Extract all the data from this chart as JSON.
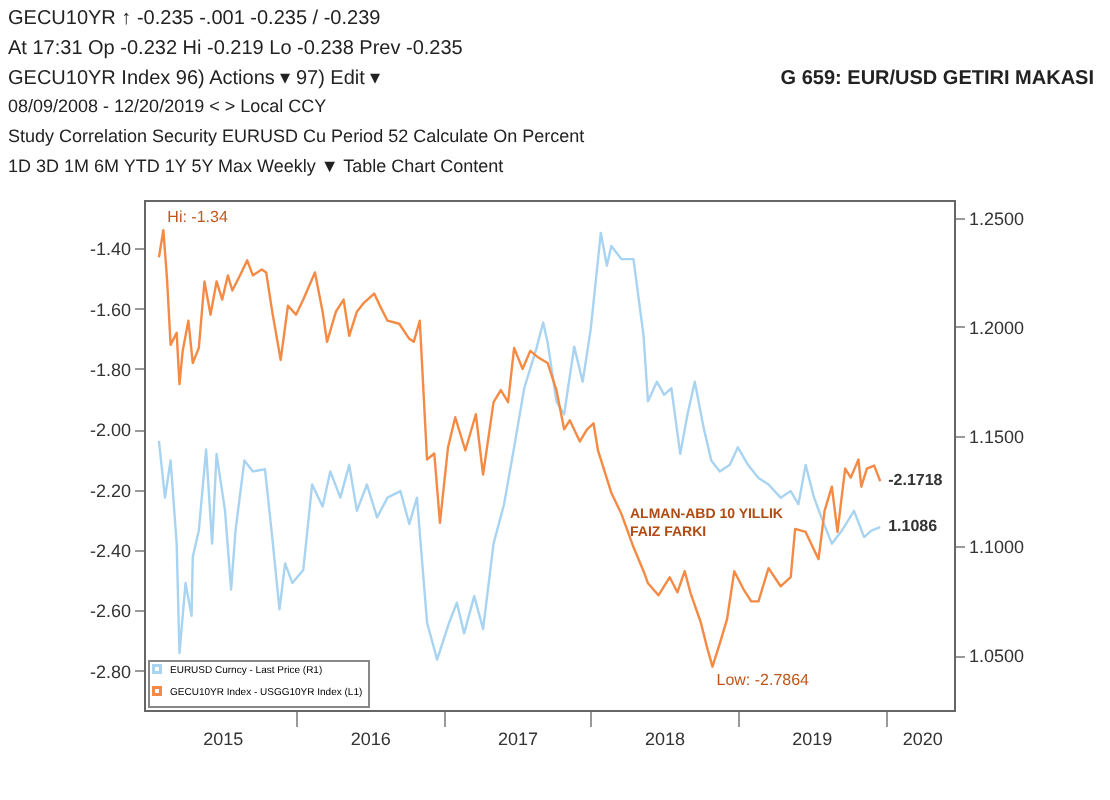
{
  "chart_data": {
    "type": "line",
    "title": "G 659: EUR/USD GETIRI MAKASI",
    "annotations": [
      "GECU10YR   ↑ -0.235     -.001     -0.235 / -0.239",
      "At 17:31   Op -0.232   Hi -0.219   Lo -0.238   Prev -0.235",
      "GECU10YR Index     96) Actions ▾     97) Edit ▾",
      "08/09/2008 - 12/20/2019   < >   Local CCY",
      "Study  Correlation   Security  EURUSD Cu   Period  52   Calculate On  Percent",
      "1D  3D  1M  6M  YTD  1Y  5Y  Max  Weekly ▼   Table   Chart Content",
      {
        "text": "Hi: -1.34",
        "x": "2015-02-06",
        "y": -1.34
      },
      {
        "text": "Low: -2.7864",
        "x": "2018-10-30",
        "y": -2.7864
      },
      "ALMAN-ABD 10 YILLIK FAIZ FARKI"
    ],
    "xlim": [
      "2014-12-20",
      "2020-06-20"
    ],
    "xticks": [
      {
        "value": "2015-07-02",
        "label": "2015"
      },
      {
        "value": "2016-01-01",
        "label": null
      },
      {
        "value": "2016-07-02",
        "label": "2016"
      },
      {
        "value": "2017-01-01",
        "label": null
      },
      {
        "value": "2017-07-02",
        "label": "2017"
      },
      {
        "value": "2018-01-01",
        "label": null
      },
      {
        "value": "2018-07-02",
        "label": "2018"
      },
      {
        "value": "2019-01-01",
        "label": null
      },
      {
        "value": "2019-07-02",
        "label": "2019"
      },
      {
        "value": "2020-01-01",
        "label": null
      },
      {
        "value": "2020-04-01",
        "label": "2020"
      }
    ],
    "ylim": [
      -2.93,
      -1.24
    ],
    "yticks": [
      {
        "value": -1.4,
        "label": "-1.40"
      },
      {
        "value": -1.6,
        "label": "-1.60"
      },
      {
        "value": -1.8,
        "label": "-1.80"
      },
      {
        "value": -2.0,
        "label": "-2.00"
      },
      {
        "value": -2.2,
        "label": "-2.20"
      },
      {
        "value": -2.4,
        "label": "-2.40"
      },
      {
        "value": -2.6,
        "label": "-2.60"
      },
      {
        "value": -2.8,
        "label": "-2.80"
      }
    ],
    "y2lim": [
      1.025,
      1.258
    ],
    "y2ticks": [
      {
        "value": 1.05,
        "label": "1.0500"
      },
      {
        "value": 1.1,
        "label": "1.1000"
      },
      {
        "value": 1.15,
        "label": "1.1500"
      },
      {
        "value": 1.2,
        "label": "1.2000"
      },
      {
        "value": 1.25,
        "label": "1.2500"
      }
    ],
    "grid": false,
    "legend": "bottom left",
    "line_style": "solid",
    "marker": "none",
    "series": [
      {
        "name": "EURUSD Curncy - Last Price (R1)",
        "color": "#a8d4f2",
        "axis": "y2",
        "x": [
          "2015-01-26",
          "2015-02-10",
          "2015-02-24",
          "2015-03-11",
          "2015-03-18",
          "2015-04-02",
          "2015-04-17",
          "2015-04-20",
          "2015-05-05",
          "2015-05-23",
          "2015-06-07",
          "2015-06-18",
          "2015-07-09",
          "2015-07-24",
          "2015-08-04",
          "2015-08-26",
          "2015-09-16",
          "2015-10-16",
          "2015-11-03",
          "2015-11-21",
          "2015-12-05",
          "2015-12-23",
          "2016-01-19",
          "2016-02-10",
          "2016-03-07",
          "2016-03-26",
          "2016-04-20",
          "2016-05-12",
          "2016-05-31",
          "2016-06-25",
          "2016-07-20",
          "2016-08-15",
          "2016-09-16",
          "2016-10-08",
          "2016-10-27",
          "2016-11-21",
          "2016-12-16",
          "2017-01-15",
          "2017-02-03",
          "2017-02-21",
          "2017-03-18",
          "2017-04-09",
          "2017-05-05",
          "2017-05-31",
          "2017-06-25",
          "2017-07-20",
          "2017-08-19",
          "2017-09-05",
          "2017-09-16",
          "2017-10-08",
          "2017-10-27",
          "2017-11-21",
          "2017-12-12",
          "2018-01-01",
          "2018-01-26",
          "2018-02-10",
          "2018-02-21",
          "2018-03-18",
          "2018-04-17",
          "2018-05-12",
          "2018-05-23",
          "2018-06-14",
          "2018-07-02",
          "2018-07-20",
          "2018-08-11",
          "2018-08-29",
          "2018-09-16",
          "2018-10-08",
          "2018-10-27",
          "2018-11-17",
          "2018-12-12",
          "2019-01-01",
          "2019-01-26",
          "2019-02-21",
          "2019-03-18",
          "2019-04-17",
          "2019-05-12",
          "2019-05-31",
          "2019-06-18",
          "2019-07-09",
          "2019-07-27",
          "2019-08-22",
          "2019-09-16",
          "2019-10-16",
          "2019-11-10",
          "2019-11-28",
          "2019-12-20"
        ],
        "values": [
          1.148,
          1.122,
          1.139,
          1.101,
          1.051,
          1.083,
          1.068,
          1.095,
          1.107,
          1.144,
          1.101,
          1.142,
          1.116,
          1.08,
          1.107,
          1.139,
          1.134,
          1.135,
          1.104,
          1.071,
          1.092,
          1.083,
          1.089,
          1.128,
          1.118,
          1.134,
          1.122,
          1.137,
          1.116,
          1.128,
          1.113,
          1.122,
          1.125,
          1.11,
          1.122,
          1.065,
          1.048,
          1.065,
          1.074,
          1.06,
          1.077,
          1.062,
          1.101,
          1.119,
          1.145,
          1.172,
          1.19,
          1.202,
          1.193,
          1.166,
          1.16,
          1.191,
          1.175,
          1.199,
          1.243,
          1.228,
          1.237,
          1.231,
          1.231,
          1.196,
          1.166,
          1.175,
          1.169,
          1.172,
          1.142,
          1.16,
          1.175,
          1.154,
          1.139,
          1.134,
          1.137,
          1.145,
          1.137,
          1.131,
          1.128,
          1.122,
          1.125,
          1.119,
          1.137,
          1.122,
          1.113,
          1.101,
          1.107,
          1.116,
          1.104,
          1.107,
          1.1086
        ],
        "value_labels": [
          null,
          null,
          null,
          null,
          null,
          null,
          null,
          null,
          null,
          null,
          null,
          null,
          null,
          null,
          null,
          null,
          null,
          null,
          null,
          null,
          null,
          null,
          null,
          null,
          null,
          null,
          null,
          null,
          null,
          null,
          null,
          null,
          null,
          null,
          null,
          null,
          null,
          null,
          null,
          null,
          null,
          null,
          null,
          null,
          null,
          null,
          null,
          null,
          null,
          null,
          null,
          null,
          null,
          null,
          null,
          null,
          null,
          null,
          null,
          null,
          null,
          null,
          null,
          null,
          null,
          null,
          null,
          null,
          null,
          null,
          null,
          null,
          null,
          null,
          null,
          null,
          null,
          null,
          null,
          null,
          null,
          null,
          null,
          null,
          null,
          null,
          "1.1086"
        ]
      },
      {
        "name": "GECU10YR Index - USGG10YR Index (L1)",
        "color": "#f58a45",
        "x": [
          "2015-01-26",
          "2015-02-06",
          "2015-02-15",
          "2015-02-24",
          "2015-03-11",
          "2015-03-18",
          "2015-03-26",
          "2015-04-09",
          "2015-04-20",
          "2015-05-05",
          "2015-05-19",
          "2015-06-03",
          "2015-06-18",
          "2015-07-02",
          "2015-07-16",
          "2015-07-27",
          "2015-08-15",
          "2015-09-02",
          "2015-09-16",
          "2015-10-08",
          "2015-10-19",
          "2015-11-03",
          "2015-11-24",
          "2015-12-12",
          "2016-01-01",
          "2016-01-19",
          "2016-02-17",
          "2016-03-07",
          "2016-03-18",
          "2016-04-09",
          "2016-04-28",
          "2016-05-12",
          "2016-05-31",
          "2016-06-18",
          "2016-07-13",
          "2016-07-27",
          "2016-08-15",
          "2016-09-13",
          "2016-10-08",
          "2016-10-19",
          "2016-11-03",
          "2016-11-21",
          "2016-12-09",
          "2016-12-23",
          "2017-01-12",
          "2017-01-30",
          "2017-02-24",
          "2017-03-22",
          "2017-04-09",
          "2017-05-05",
          "2017-05-23",
          "2017-06-10",
          "2017-06-25",
          "2017-07-16",
          "2017-08-04",
          "2017-08-22",
          "2017-09-16",
          "2017-10-08",
          "2017-10-27",
          "2017-11-10",
          "2017-12-05",
          "2017-12-23",
          "2018-01-08",
          "2018-01-19",
          "2018-02-21",
          "2018-03-18",
          "2018-04-17",
          "2018-05-12",
          "2018-05-23",
          "2018-06-18",
          "2018-07-16",
          "2018-08-04",
          "2018-08-22",
          "2018-09-05",
          "2018-10-01",
          "2018-10-16",
          "2018-10-30",
          "2018-11-17",
          "2018-12-05",
          "2018-12-23",
          "2019-01-15",
          "2019-02-03",
          "2019-02-21",
          "2019-03-18",
          "2019-04-17",
          "2019-05-12",
          "2019-05-23",
          "2019-06-18",
          "2019-07-02",
          "2019-07-20",
          "2019-08-04",
          "2019-08-22",
          "2019-09-05",
          "2019-09-24",
          "2019-10-08",
          "2019-10-27",
          "2019-11-03",
          "2019-11-17",
          "2019-12-05",
          "2019-12-20"
        ],
        "values": [
          -1.43,
          -1.34,
          -1.5,
          -1.72,
          -1.68,
          -1.85,
          -1.74,
          -1.64,
          -1.78,
          -1.73,
          -1.51,
          -1.62,
          -1.51,
          -1.57,
          -1.49,
          -1.54,
          -1.49,
          -1.44,
          -1.49,
          -1.47,
          -1.48,
          -1.61,
          -1.77,
          -1.59,
          -1.62,
          -1.57,
          -1.48,
          -1.61,
          -1.71,
          -1.61,
          -1.57,
          -1.69,
          -1.61,
          -1.58,
          -1.55,
          -1.59,
          -1.64,
          -1.65,
          -1.7,
          -1.71,
          -1.64,
          -2.1,
          -2.08,
          -2.31,
          -2.06,
          -1.96,
          -2.07,
          -1.95,
          -2.15,
          -1.91,
          -1.87,
          -1.91,
          -1.73,
          -1.8,
          -1.74,
          -1.76,
          -1.78,
          -1.87,
          -2.0,
          -1.97,
          -2.04,
          -2.0,
          -1.98,
          -2.07,
          -2.21,
          -2.28,
          -2.39,
          -2.47,
          -2.51,
          -2.55,
          -2.49,
          -2.54,
          -2.47,
          -2.54,
          -2.64,
          -2.72,
          -2.7864,
          -2.71,
          -2.63,
          -2.47,
          -2.53,
          -2.57,
          -2.57,
          -2.46,
          -2.52,
          -2.49,
          -2.33,
          -2.34,
          -2.38,
          -2.43,
          -2.27,
          -2.19,
          -2.34,
          -2.13,
          -2.16,
          -2.1,
          -2.19,
          -2.13,
          -2.12,
          -2.1718
        ],
        "value_labels": [
          null,
          null,
          null,
          null,
          null,
          null,
          null,
          null,
          null,
          null,
          null,
          null,
          null,
          null,
          null,
          null,
          null,
          null,
          null,
          null,
          null,
          null,
          null,
          null,
          null,
          null,
          null,
          null,
          null,
          null,
          null,
          null,
          null,
          null,
          null,
          null,
          null,
          null,
          null,
          null,
          null,
          null,
          null,
          null,
          null,
          null,
          null,
          null,
          null,
          null,
          null,
          null,
          null,
          null,
          null,
          null,
          null,
          null,
          null,
          null,
          null,
          null,
          null,
          null,
          null,
          null,
          null,
          null,
          null,
          null,
          null,
          null,
          null,
          null,
          null,
          null,
          null,
          null,
          null,
          null,
          null,
          null,
          null,
          null,
          null,
          null,
          null,
          null,
          null,
          null,
          null,
          null,
          null,
          null,
          null,
          null,
          null,
          null,
          null,
          "-2.1718"
        ]
      }
    ]
  }
}
